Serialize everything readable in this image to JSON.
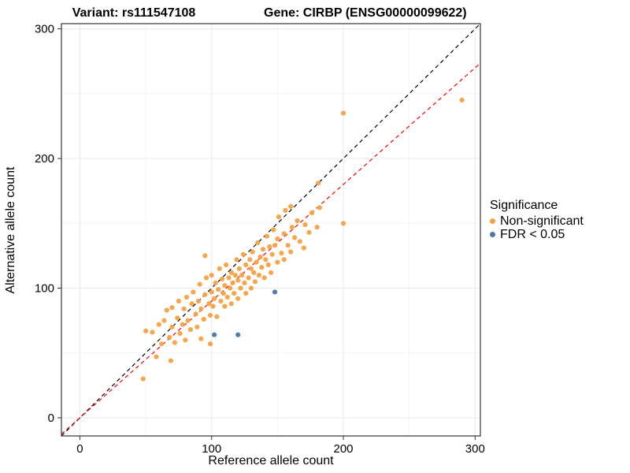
{
  "chart_data": {
    "type": "scatter",
    "title_left": "Variant: rs111547108",
    "title_right": "Gene: CIRBP (ENSG00000099622)",
    "xlabel": "Reference allele count",
    "ylabel": "Alternative allele count",
    "xlim": [
      -14,
      304
    ],
    "ylim": [
      -14,
      304
    ],
    "x_ticks": [
      0,
      100,
      200,
      300
    ],
    "y_ticks": [
      0,
      100,
      200,
      300
    ],
    "x_minor_ticks": [
      50,
      150,
      250
    ],
    "y_minor_ticks": [
      50,
      150,
      250
    ],
    "grid": "faint major and minor gridlines on white panel with black border",
    "panel_border_color": "#333333",
    "legend": {
      "title": "Significance",
      "position": "right",
      "items": [
        {
          "label": "Non-significant",
          "color": "#F5A142"
        },
        {
          "label": "FDR < 0.05",
          "color": "#4878A8"
        }
      ]
    },
    "reference_lines": [
      {
        "name": "identity-line",
        "slope": 1,
        "intercept": 0,
        "color": "#000000",
        "style": "dashed"
      },
      {
        "name": "fit-line",
        "slope": 0.9,
        "intercept": 0,
        "color": "#FF0000",
        "style": "dashed"
      }
    ],
    "series": [
      {
        "name": "Non-significant",
        "color": "#F5A142",
        "points": [
          [
            48,
            30
          ],
          [
            50,
            67
          ],
          [
            55,
            66
          ],
          [
            58,
            47
          ],
          [
            60,
            72
          ],
          [
            62,
            57
          ],
          [
            64,
            75
          ],
          [
            66,
            83
          ],
          [
            68,
            62
          ],
          [
            69,
            44
          ],
          [
            70,
            70
          ],
          [
            70,
            85
          ],
          [
            72,
            58
          ],
          [
            74,
            77
          ],
          [
            75,
            90
          ],
          [
            76,
            65
          ],
          [
            78,
            72
          ],
          [
            79,
            84
          ],
          [
            80,
            60
          ],
          [
            81,
            93
          ],
          [
            82,
            75
          ],
          [
            84,
            68
          ],
          [
            85,
            88
          ],
          [
            86,
            97
          ],
          [
            88,
            80
          ],
          [
            89,
            70
          ],
          [
            90,
            90
          ],
          [
            91,
            103
          ],
          [
            92,
            61
          ],
          [
            92,
            84
          ],
          [
            94,
            76
          ],
          [
            95,
            95
          ],
          [
            95,
            125
          ],
          [
            96,
            108
          ],
          [
            98,
            88
          ],
          [
            99,
            57
          ],
          [
            99,
            79
          ],
          [
            100,
            97
          ],
          [
            100,
            110
          ],
          [
            101,
            86
          ],
          [
            102,
            92
          ],
          [
            103,
            104
          ],
          [
            104,
            78
          ],
          [
            105,
            99
          ],
          [
            106,
            115
          ],
          [
            107,
            90
          ],
          [
            108,
            107
          ],
          [
            109,
            96
          ],
          [
            110,
            86
          ],
          [
            110,
            102
          ],
          [
            111,
            118
          ],
          [
            112,
            93
          ],
          [
            113,
            108
          ],
          [
            114,
            100
          ],
          [
            115,
            88
          ],
          [
            115,
            112
          ],
          [
            116,
            104
          ],
          [
            117,
            96
          ],
          [
            118,
            110
          ],
          [
            119,
            122
          ],
          [
            120,
            92
          ],
          [
            120,
            106
          ],
          [
            121,
            115
          ],
          [
            122,
            100
          ],
          [
            123,
            110
          ],
          [
            124,
            126
          ],
          [
            125,
            104
          ],
          [
            126,
            96
          ],
          [
            126,
            118
          ],
          [
            128,
            108
          ],
          [
            129,
            122
          ],
          [
            130,
            100
          ],
          [
            130,
            115
          ],
          [
            131,
            128
          ],
          [
            132,
            112
          ],
          [
            133,
            105
          ],
          [
            134,
            120
          ],
          [
            135,
            135
          ],
          [
            136,
            110
          ],
          [
            137,
            124
          ],
          [
            138,
            116
          ],
          [
            139,
            130
          ],
          [
            140,
            108
          ],
          [
            141,
            122
          ],
          [
            142,
            140
          ],
          [
            143,
            118
          ],
          [
            144,
            132
          ],
          [
            145,
            112
          ],
          [
            146,
            126
          ],
          [
            147,
            145
          ],
          [
            148,
            133
          ],
          [
            150,
            120
          ],
          [
            150,
            138
          ],
          [
            151,
            155
          ],
          [
            153,
            127
          ],
          [
            155,
            122
          ],
          [
            155,
            142
          ],
          [
            156,
            160
          ],
          [
            158,
            133
          ],
          [
            160,
            128
          ],
          [
            160,
            163
          ],
          [
            161,
            147
          ],
          [
            163,
            139
          ],
          [
            165,
            152
          ],
          [
            167,
            136
          ],
          [
            170,
            131
          ],
          [
            171,
            149
          ],
          [
            174,
            143
          ],
          [
            176,
            158
          ],
          [
            180,
            147
          ],
          [
            181,
            181
          ],
          [
            182,
            162
          ],
          [
            200,
            150
          ],
          [
            200,
            235
          ],
          [
            290,
            245
          ]
        ]
      },
      {
        "name": "FDR < 0.05",
        "color": "#4878A8",
        "points": [
          [
            102,
            64
          ],
          [
            120,
            64
          ],
          [
            148,
            97
          ]
        ]
      }
    ]
  }
}
